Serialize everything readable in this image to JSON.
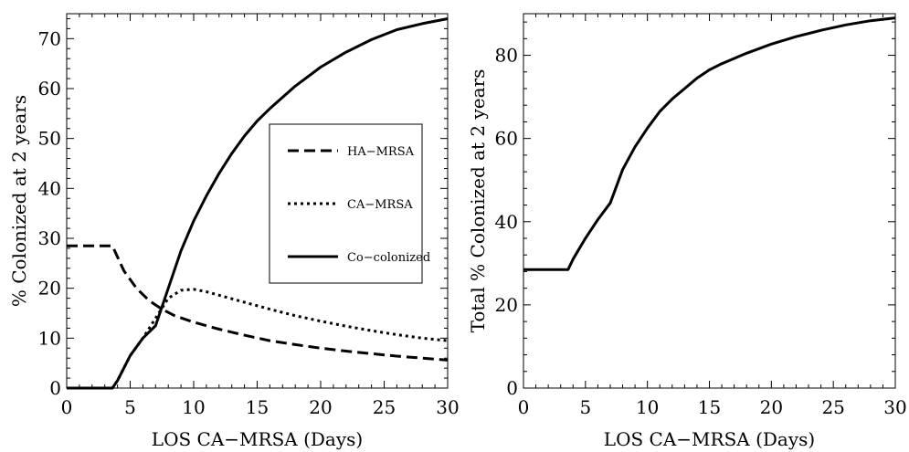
{
  "chart_data": [
    {
      "type": "line",
      "xlabel": "LOS CA−MRSA (Days)",
      "ylabel": "% Colonized  at 2 years",
      "xlim": [
        0,
        30
      ],
      "ylim": [
        0,
        75
      ],
      "xticks": [
        0,
        5,
        10,
        15,
        20,
        25,
        30
      ],
      "yticks": [
        0,
        10,
        20,
        30,
        40,
        50,
        60,
        70
      ],
      "legend": "center-right",
      "series": [
        {
          "name": "HA−MRSA",
          "style": "dashed",
          "x": [
            0,
            3.6,
            4.5,
            5.5,
            6.5,
            7.5,
            8.5,
            10,
            12,
            14,
            16,
            18,
            20,
            22,
            24,
            26,
            28,
            30
          ],
          "y": [
            28.5,
            28.5,
            23.5,
            20,
            17.5,
            15.8,
            14.5,
            13.2,
            11.8,
            10.6,
            9.5,
            8.7,
            8,
            7.4,
            6.9,
            6.4,
            6,
            5.6
          ]
        },
        {
          "name": "CA−MRSA",
          "style": "dotted",
          "x": [
            0,
            3.6,
            4,
            5,
            6,
            7,
            8,
            9,
            10,
            11,
            12,
            14,
            16,
            18,
            20,
            22,
            24,
            26,
            28,
            30
          ],
          "y": [
            0,
            0,
            1.5,
            6.5,
            10,
            14,
            18,
            19.6,
            19.8,
            19.3,
            18.6,
            17.2,
            15.8,
            14.5,
            13.4,
            12.4,
            11.5,
            10.7,
            10,
            9.5
          ]
        },
        {
          "name": "Co−colonized",
          "style": "solid",
          "x": [
            0,
            3.6,
            4,
            5,
            6,
            7,
            8,
            9,
            10,
            11,
            12,
            13,
            14,
            15,
            16,
            18,
            20,
            22,
            24,
            26,
            28,
            30
          ],
          "y": [
            0,
            0,
            1.5,
            6.5,
            10,
            12.5,
            20,
            27.5,
            33.5,
            38.5,
            43,
            47,
            50.5,
            53.5,
            56,
            60.5,
            64.3,
            67.3,
            69.8,
            71.8,
            73,
            74
          ]
        }
      ]
    },
    {
      "type": "line",
      "xlabel": "LOS CA−MRSA (Days)",
      "ylabel": "Total % Colonized at 2 years",
      "xlim": [
        0,
        30
      ],
      "ylim": [
        0,
        90
      ],
      "xticks": [
        0,
        5,
        10,
        15,
        20,
        25,
        30
      ],
      "yticks": [
        0,
        20,
        40,
        60,
        80
      ],
      "series": [
        {
          "style": "solid",
          "x": [
            0,
            3.6,
            4,
            5,
            6,
            7,
            8,
            9,
            10,
            11,
            12,
            13,
            14,
            15,
            16,
            18,
            20,
            22,
            24,
            26,
            28,
            30
          ],
          "y": [
            28.5,
            28.5,
            31,
            36,
            40.5,
            44.5,
            52.5,
            58,
            62.5,
            66.5,
            69.5,
            72,
            74.5,
            76.5,
            78,
            80.5,
            82.7,
            84.5,
            86,
            87.3,
            88.3,
            89
          ]
        }
      ]
    }
  ]
}
